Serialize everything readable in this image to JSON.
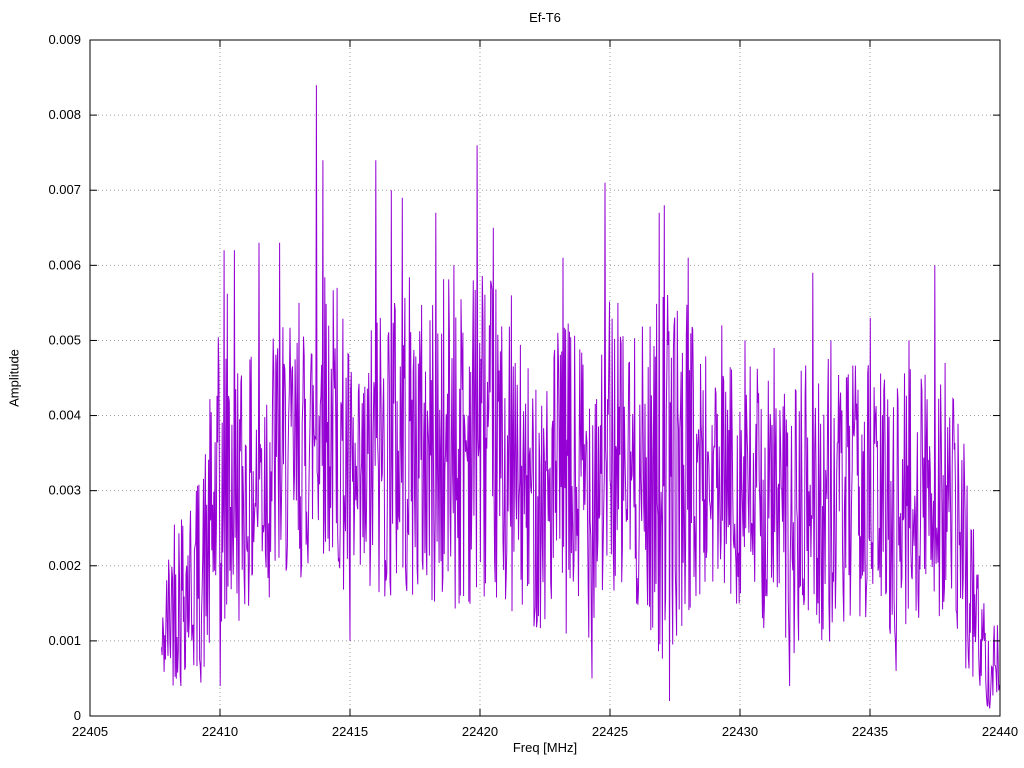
{
  "page": {
    "background": "#ffffff"
  },
  "chart_data": {
    "type": "line",
    "title": "Ef-T6",
    "xlabel": "Freq [MHz]",
    "ylabel": "Amplitude",
    "xlim": [
      22405,
      22440
    ],
    "ylim": [
      0,
      0.009
    ],
    "xticks": [
      22405,
      22410,
      22415,
      22420,
      22425,
      22430,
      22435,
      22440
    ],
    "xtick_labels": [
      "22405",
      "22410",
      "22415",
      "22420",
      "22425",
      "22430",
      "22435",
      "22440"
    ],
    "yticks": [
      0,
      0.001,
      0.002,
      0.003,
      0.004,
      0.005,
      0.006,
      0.007,
      0.008,
      0.009
    ],
    "ytick_labels": [
      "0",
      "0.001",
      "0.002",
      "0.003",
      "0.004",
      "0.005",
      "0.006",
      "0.007",
      "0.008",
      "0.009"
    ],
    "grid": "dotted",
    "grid_color": "#9e9e9e",
    "legend": "none",
    "line_color": "#9400D3",
    "series_name": "Ef-T6 amplitude spectrum",
    "synthesis": {
      "seed": 42,
      "n_points": 1300,
      "x_start": 22407.75,
      "x_end": 22440,
      "envelope": [
        [
          22407.75,
          0.0004,
          0.0013
        ],
        [
          22408.2,
          0.0004,
          0.003
        ],
        [
          22408.8,
          0.0006,
          0.0031
        ],
        [
          22409.3,
          0.0004,
          0.0033
        ],
        [
          22409.8,
          0.0008,
          0.0048
        ],
        [
          22410.3,
          0.001,
          0.0058
        ],
        [
          22411.0,
          0.0014,
          0.0046
        ],
        [
          22411.8,
          0.0014,
          0.0055
        ],
        [
          22412.5,
          0.0018,
          0.0052
        ],
        [
          22413.2,
          0.0018,
          0.0052
        ],
        [
          22413.9,
          0.0022,
          0.0062
        ],
        [
          22414.6,
          0.0018,
          0.0056
        ],
        [
          22415.3,
          0.001,
          0.0044
        ],
        [
          22416.1,
          0.0014,
          0.0058
        ],
        [
          22417.0,
          0.0016,
          0.006
        ],
        [
          22418.0,
          0.0014,
          0.0056
        ],
        [
          22419.0,
          0.0013,
          0.006
        ],
        [
          22420.0,
          0.0016,
          0.0062
        ],
        [
          22421.0,
          0.0014,
          0.0054
        ],
        [
          22422.0,
          0.0012,
          0.0046
        ],
        [
          22423.0,
          0.0011,
          0.0052
        ],
        [
          22424.0,
          0.0009,
          0.0054
        ],
        [
          22425.0,
          0.0016,
          0.0058
        ],
        [
          22426.0,
          0.0014,
          0.005
        ],
        [
          22427.0,
          0.0007,
          0.0058
        ],
        [
          22428.0,
          0.0013,
          0.0055
        ],
        [
          22429.0,
          0.0016,
          0.0048
        ],
        [
          22430.0,
          0.0014,
          0.0048
        ],
        [
          22431.0,
          0.0011,
          0.0046
        ],
        [
          22432.0,
          0.0007,
          0.0044
        ],
        [
          22433.0,
          0.0009,
          0.005
        ],
        [
          22434.0,
          0.0011,
          0.0046
        ],
        [
          22435.0,
          0.0013,
          0.0048
        ],
        [
          22436.0,
          0.0009,
          0.0046
        ],
        [
          22437.0,
          0.0013,
          0.0048
        ],
        [
          22437.7,
          0.0012,
          0.0052
        ],
        [
          22438.4,
          0.0008,
          0.0042
        ],
        [
          22439.0,
          0.0004,
          0.0026
        ],
        [
          22439.5,
          0.0001,
          0.0013
        ],
        [
          22440.0,
          0.0003,
          0.0012
        ]
      ],
      "peaks": [
        [
          22410.15,
          0.0062
        ],
        [
          22410.55,
          0.0062
        ],
        [
          22411.5,
          0.0063
        ],
        [
          22412.3,
          0.0063
        ],
        [
          22413.05,
          0.0055
        ],
        [
          22413.7,
          0.0084
        ],
        [
          22413.95,
          0.0074
        ],
        [
          22414.5,
          0.0057
        ],
        [
          22416.0,
          0.0074
        ],
        [
          22416.6,
          0.007
        ],
        [
          22417.0,
          0.0069
        ],
        [
          22418.3,
          0.0067
        ],
        [
          22419.0,
          0.006
        ],
        [
          22419.9,
          0.0076
        ],
        [
          22420.5,
          0.0065
        ],
        [
          22421.2,
          0.0056
        ],
        [
          22423.2,
          0.0061
        ],
        [
          22424.8,
          0.0071
        ],
        [
          22425.3,
          0.0055
        ],
        [
          22426.9,
          0.0067
        ],
        [
          22427.1,
          0.0068
        ],
        [
          22428.0,
          0.0061
        ],
        [
          22429.3,
          0.0052
        ],
        [
          22430.2,
          0.005
        ],
        [
          22431.3,
          0.0049
        ],
        [
          22432.8,
          0.0059
        ],
        [
          22433.5,
          0.005
        ],
        [
          22435.0,
          0.0053
        ],
        [
          22436.5,
          0.005
        ],
        [
          22437.5,
          0.006
        ],
        [
          22437.9,
          0.0047
        ]
      ],
      "troughs": [
        [
          22408.5,
          0.0004
        ],
        [
          22410.0,
          0.0004
        ],
        [
          22415.0,
          0.001
        ],
        [
          22424.3,
          0.0005
        ],
        [
          22427.3,
          0.0002
        ],
        [
          22431.9,
          0.0004
        ],
        [
          22436.0,
          0.0006
        ],
        [
          22439.6,
          0.0001
        ]
      ]
    }
  }
}
